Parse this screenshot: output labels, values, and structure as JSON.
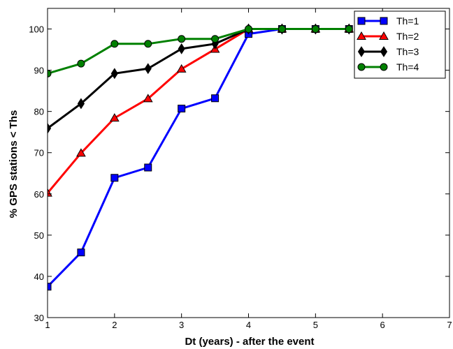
{
  "chart_data": {
    "type": "line",
    "title": "",
    "xlabel": "Dt (years) - after the event",
    "ylabel": "% GPS stations < Ths",
    "xlim": [
      1,
      7
    ],
    "ylim": [
      30,
      105
    ],
    "xticks": [
      1,
      2,
      3,
      4,
      5,
      6,
      7
    ],
    "yticks": [
      30,
      40,
      50,
      60,
      70,
      80,
      90,
      100
    ],
    "grid": false,
    "legend": "top-right",
    "x": [
      1,
      1.5,
      2,
      2.5,
      3,
      3.5,
      4,
      4.5,
      5,
      5.5
    ],
    "series": [
      {
        "name": "Th=1",
        "color": "#0000ff",
        "marker": "square",
        "values": [
          37.5,
          45.8,
          63.9,
          66.4,
          80.7,
          83.2,
          98.8,
          100,
          100,
          100
        ]
      },
      {
        "name": "Th=2",
        "color": "#ff0000",
        "marker": "triangle",
        "values": [
          60.2,
          69.9,
          78.4,
          83.1,
          90.3,
          95.1,
          100,
          100,
          100,
          100
        ]
      },
      {
        "name": "Th=3",
        "color": "#000000",
        "marker": "diamond",
        "values": [
          75.9,
          81.9,
          89.2,
          90.4,
          95.2,
          96.4,
          100,
          100,
          100,
          100
        ]
      },
      {
        "name": "Th=4",
        "color": "#008000",
        "marker": "circle",
        "values": [
          89.2,
          91.6,
          96.4,
          96.4,
          97.6,
          97.6,
          100,
          100,
          100,
          100
        ]
      }
    ]
  }
}
